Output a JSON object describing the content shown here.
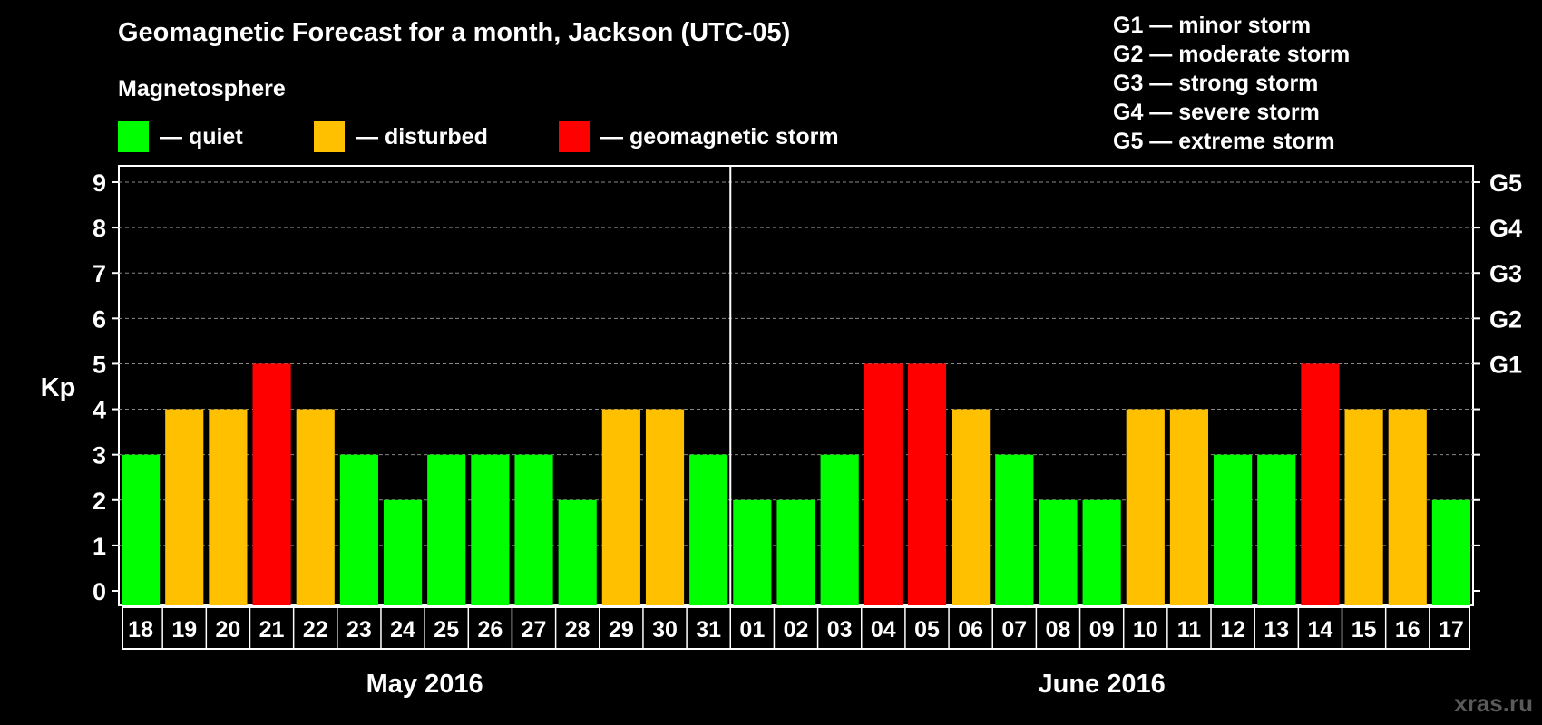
{
  "title": "Geomagnetic Forecast for a month, Jackson (UTC-05)",
  "subtitle": "Magnetosphere",
  "legend": [
    {
      "label": "— quiet",
      "color": "#00ff00"
    },
    {
      "label": "— disturbed",
      "color": "#ffc000"
    },
    {
      "label": "— geomagnetic storm",
      "color": "#ff0000"
    }
  ],
  "g_levels": [
    "G1 — minor storm",
    "G2 — moderate storm",
    "G3 — strong storm",
    "G4 — severe storm",
    "G5 — extreme storm"
  ],
  "watermark": "xras.ru",
  "chart_data": {
    "type": "bar",
    "ylabel": "Kp",
    "ylim": [
      0,
      9
    ],
    "y_ticks": [
      0,
      1,
      2,
      3,
      4,
      5,
      6,
      7,
      8,
      9
    ],
    "right_tick_labels": [
      {
        "kp": 5,
        "label": "G1"
      },
      {
        "kp": 6,
        "label": "G2"
      },
      {
        "kp": 7,
        "label": "G3"
      },
      {
        "kp": 8,
        "label": "G4"
      },
      {
        "kp": 9,
        "label": "G5"
      }
    ],
    "months": [
      {
        "label": "May 2016",
        "count": 14
      },
      {
        "label": "June 2016",
        "count": 17
      }
    ],
    "categories": [
      "18",
      "19",
      "20",
      "21",
      "22",
      "23",
      "24",
      "25",
      "26",
      "27",
      "28",
      "29",
      "30",
      "31",
      "01",
      "02",
      "03",
      "04",
      "05",
      "06",
      "07",
      "08",
      "09",
      "10",
      "11",
      "12",
      "13",
      "14",
      "15",
      "16",
      "17"
    ],
    "values": [
      3,
      4,
      4,
      5,
      4,
      3,
      2,
      3,
      3,
      3,
      2,
      4,
      4,
      3,
      2,
      2,
      3,
      5,
      5,
      4,
      3,
      2,
      2,
      4,
      4,
      3,
      3,
      5,
      4,
      4,
      2
    ],
    "level_colors": {
      "quiet": "#00ff00",
      "disturbed": "#ffc000",
      "storm": "#ff0000"
    },
    "grid": "dashed"
  }
}
